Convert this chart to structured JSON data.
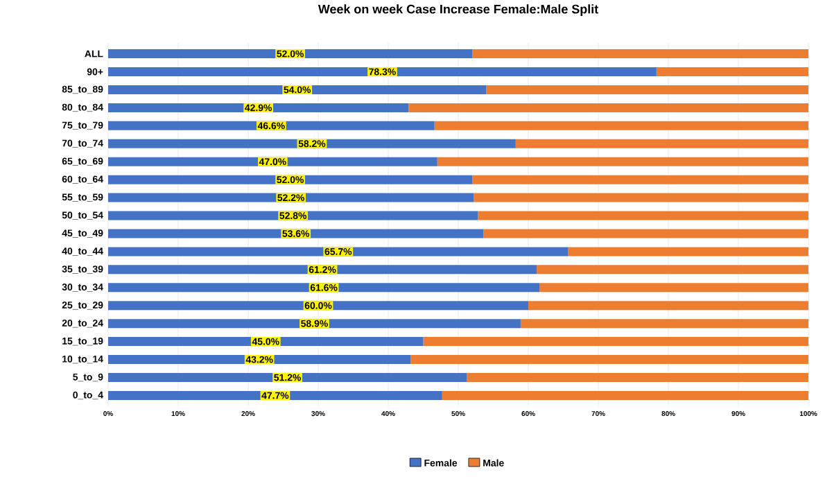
{
  "chart_data": {
    "type": "bar",
    "orientation": "horizontal",
    "stacked": true,
    "title": "Week on week Case Increase Female:Male Split",
    "categories": [
      "ALL",
      "90+",
      "85_to_89",
      "80_to_84",
      "75_to_79",
      "70_to_74",
      "65_to_69",
      "60_to_64",
      "55_to_59",
      "50_to_54",
      "45_to_49",
      "40_to_44",
      "35_to_39",
      "30_to_34",
      "25_to_29",
      "20_to_24",
      "15_to_19",
      "10_to_14",
      "5_to_9",
      "0_to_4"
    ],
    "series": [
      {
        "name": "Female",
        "color": "#4472c4",
        "values": [
          52.0,
          78.3,
          54.0,
          42.9,
          46.6,
          58.2,
          47.0,
          52.0,
          52.2,
          52.8,
          53.6,
          65.7,
          61.2,
          61.6,
          60.0,
          58.9,
          45.0,
          43.2,
          51.2,
          47.7
        ],
        "value_labels": [
          "52.0%",
          "78.3%",
          "54.0%",
          "42.9%",
          "46.6%",
          "58.2%",
          "47.0%",
          "52.0%",
          "52.2%",
          "52.8%",
          "53.6%",
          "65.7%",
          "61.2%",
          "61.6%",
          "60.0%",
          "58.9%",
          "45.0%",
          "43.2%",
          "51.2%",
          "47.7%"
        ]
      },
      {
        "name": "Male",
        "color": "#ed7d31",
        "values": [
          48.0,
          21.7,
          46.0,
          57.1,
          53.4,
          41.8,
          53.0,
          48.0,
          47.8,
          47.2,
          46.4,
          34.3,
          38.8,
          38.4,
          40.0,
          41.1,
          55.0,
          56.8,
          48.8,
          52.3
        ]
      }
    ],
    "xlim": [
      0,
      100
    ],
    "xticks": [
      {
        "value": 0,
        "label": "0%"
      },
      {
        "value": 10,
        "label": "10%"
      },
      {
        "value": 20,
        "label": "20%"
      },
      {
        "value": 30,
        "label": "30%"
      },
      {
        "value": 40,
        "label": "40%"
      },
      {
        "value": 50,
        "label": "50%"
      },
      {
        "value": 60,
        "label": "60%"
      },
      {
        "value": 70,
        "label": "70%"
      },
      {
        "value": 80,
        "label": "80%"
      },
      {
        "value": 90,
        "label": "90%"
      },
      {
        "value": 100,
        "label": "100%"
      }
    ],
    "grid": "x",
    "legend": "bottom"
  }
}
